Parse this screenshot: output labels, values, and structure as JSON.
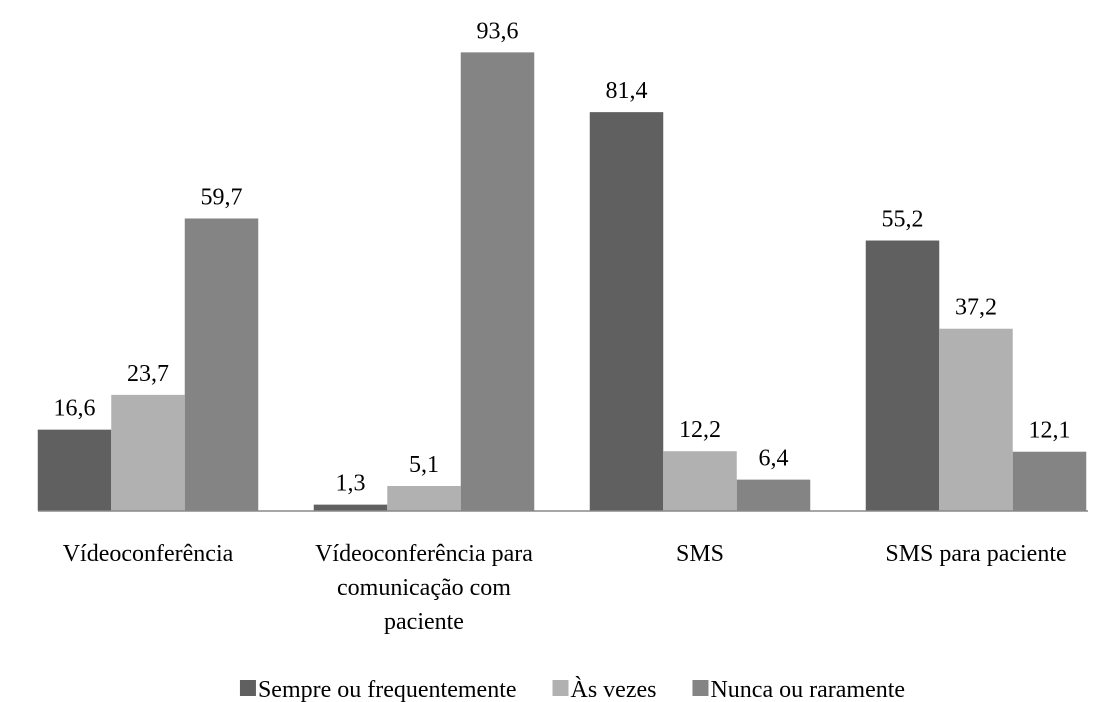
{
  "chart_data": {
    "type": "bar",
    "categories": [
      "Vídeoconferência",
      "Vídeoconferência para comunicação com paciente",
      "SMS",
      "SMS para paciente"
    ],
    "series": [
      {
        "name": "Sempre ou frequentemente",
        "color": "#606060",
        "values": [
          16.6,
          1.3,
          81.4,
          55.2
        ],
        "value_labels": [
          "16,6",
          "1,3",
          "81,4",
          "55,2"
        ]
      },
      {
        "name": "Às vezes",
        "color": "#b1b1b1",
        "values": [
          23.7,
          5.1,
          12.2,
          37.2
        ],
        "value_labels": [
          "23,7",
          "5,1",
          "12,2",
          "37,2"
        ]
      },
      {
        "name": "Nunca ou raramente",
        "color": "#848484",
        "values": [
          59.7,
          93.6,
          6.4,
          12.1
        ],
        "value_labels": [
          "59,7",
          "93,6",
          "6,4",
          "12,1"
        ]
      }
    ],
    "ylim": [
      0,
      100
    ],
    "legend": "bottom"
  }
}
